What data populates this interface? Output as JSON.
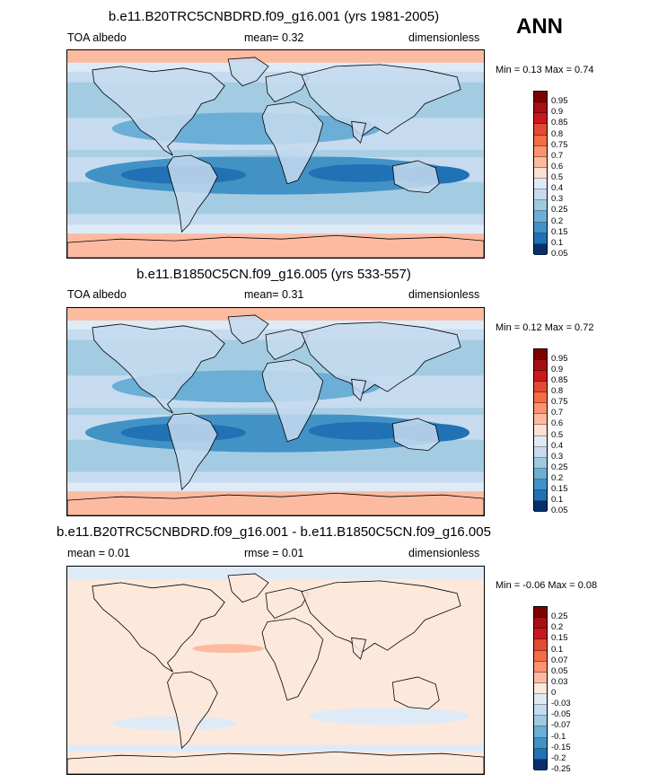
{
  "season": "ANN",
  "panels": [
    {
      "title": "b.e11.B20TRC5CNBDRD.f09_g16.001 (yrs 1981-2005)",
      "left_label": "TOA albedo",
      "center_label": "mean=  0.32",
      "right_label": "dimensionless",
      "minmax": "Min =  0.13 Max =  0.74",
      "variant": "abs",
      "colorbar": [
        "0.95",
        "0.9",
        "0.85",
        "0.8",
        "0.75",
        "0.7",
        "0.6",
        "0.5",
        "0.4",
        "0.3",
        "0.25",
        "0.2",
        "0.15",
        "0.1",
        "0.05"
      ]
    },
    {
      "title": "b.e11.B1850C5CN.f09_g16.005 (yrs 533-557)",
      "left_label": "TOA albedo",
      "center_label": "mean=  0.31",
      "right_label": "dimensionless",
      "minmax": "Min =  0.12 Max =  0.72",
      "variant": "abs",
      "colorbar": [
        "0.95",
        "0.9",
        "0.85",
        "0.8",
        "0.75",
        "0.7",
        "0.6",
        "0.5",
        "0.4",
        "0.3",
        "0.25",
        "0.2",
        "0.15",
        "0.1",
        "0.05"
      ]
    },
    {
      "title": "b.e11.B20TRC5CNBDRD.f09_g16.001 - b.e11.B1850C5CN.f09_g16.005",
      "left_label": "mean =  0.01",
      "center_label": "rmse =  0.01",
      "right_label": "dimensionless",
      "minmax": "Min = -0.06 Max =  0.08",
      "variant": "diff",
      "colorbar": [
        "0.25",
        "0.2",
        "0.15",
        "0.1",
        "0.07",
        "0.05",
        "0.03",
        "0",
        "-0.03",
        "-0.05",
        "-0.07",
        "-0.1",
        "-0.15",
        "-0.2",
        "-0.25"
      ]
    }
  ],
  "colors": {
    "abs_scale": [
      "#7f0000",
      "#a50f15",
      "#cb181d",
      "#e34a33",
      "#f46d43",
      "#fc9272",
      "#fcbba1",
      "#fde0d2",
      "#deebf7",
      "#c6dbef",
      "#9ecae1",
      "#6baed6",
      "#4292c6",
      "#2171b5",
      "#08306b"
    ],
    "diff_scale": [
      "#7f0000",
      "#a50f15",
      "#cb181d",
      "#e34a33",
      "#f46d43",
      "#fc9272",
      "#fcbba1",
      "#fde8dc",
      "#deebf7",
      "#c6dbef",
      "#9ecae1",
      "#6baed6",
      "#4292c6",
      "#2171b5",
      "#08306b"
    ]
  }
}
